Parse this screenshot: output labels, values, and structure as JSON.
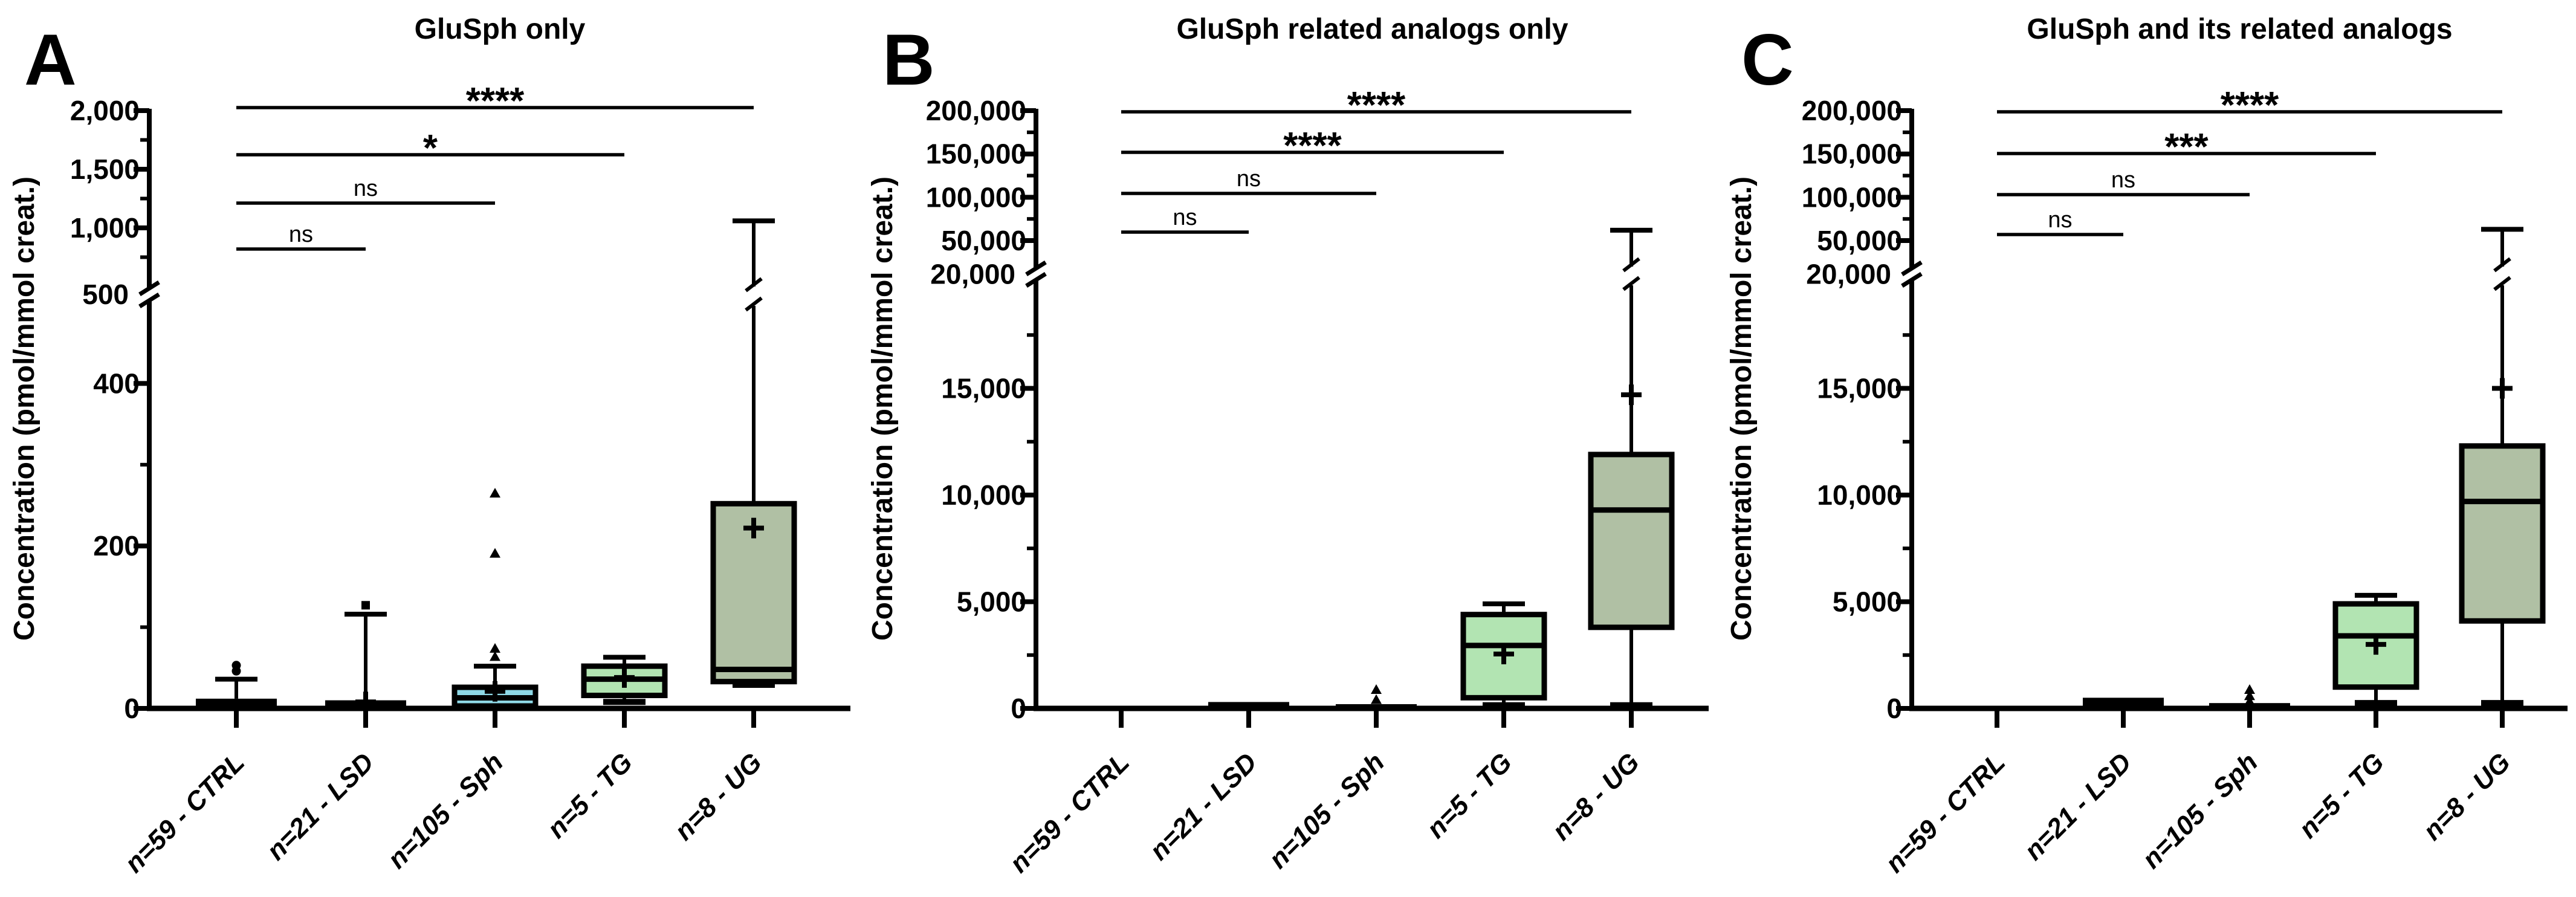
{
  "figure": {
    "background": "#ffffff",
    "axis_color": "#000000",
    "ylabel": "Concentration (pmol/mmol creat.)",
    "categories": [
      "n=59 - CTRL",
      "n=21 - LSD",
      "n=105 - Sph",
      "n=5 - TG",
      "n=8 - UG"
    ]
  },
  "chart_data": [
    {
      "type": "box",
      "panel_label": "A",
      "title": "GluSph only",
      "ylabel": "Concentration (pmol/mmol creat.)",
      "categories": [
        "n=59 - CTRL",
        "n=21 - LSD",
        "n=105 - Sph",
        "n=5 - TG",
        "n=8 - UG"
      ],
      "axis_break": true,
      "lower_range": [
        0,
        500
      ],
      "upper_range": [
        500,
        2000
      ],
      "lower_ticks": [
        {
          "value": 0,
          "label": "0"
        },
        {
          "value": 100
        },
        {
          "value": 200,
          "label": "200"
        },
        {
          "value": 300
        },
        {
          "value": 400,
          "label": "400"
        }
      ],
      "upper_ticks": [
        {
          "value": 500,
          "label": "500",
          "at_break": true
        },
        {
          "value": 750
        },
        {
          "value": 1000,
          "label": "1,000"
        },
        {
          "value": 1250
        },
        {
          "value": 1500,
          "label": "1,500"
        },
        {
          "value": 1750
        },
        {
          "value": 2000,
          "label": "2,000"
        }
      ],
      "boxes": [
        {
          "group": "CTRL",
          "fill": "#000000",
          "q1": 0,
          "q3": 12,
          "median": null,
          "whisker_low": null,
          "whisker_high": 36,
          "mean": null,
          "outliers": [
            {
              "value": 46,
              "shape": "circle"
            },
            {
              "value": 53,
              "shape": "circle"
            }
          ]
        },
        {
          "group": "LSD",
          "fill": "#000000",
          "q1": 0,
          "q3": 10,
          "median": null,
          "whisker_low": null,
          "whisker_high": 116,
          "mean": 8,
          "outliers": [
            {
              "value": 127,
              "shape": "square"
            }
          ]
        },
        {
          "group": "Sph",
          "fill": "#8ed8e6",
          "q1": 3,
          "q3": 26,
          "median": 13,
          "whisker_low": 1,
          "whisker_high": 52,
          "mean": 21,
          "outliers": [
            {
              "value": 63,
              "shape": "triangle"
            },
            {
              "value": 73,
              "shape": "triangle"
            },
            {
              "value": 190,
              "shape": "triangle"
            },
            {
              "value": 264,
              "shape": "triangle"
            }
          ]
        },
        {
          "group": "TG",
          "fill": "#b2e4b2",
          "q1": 16,
          "q3": 52,
          "median": 36,
          "whisker_low": 8,
          "whisker_high": 63,
          "mean": 38,
          "outliers": []
        },
        {
          "group": "UG",
          "fill": "#b0c0a4",
          "q1": 33,
          "q3": 252,
          "median": 48,
          "whisker_low": 29,
          "whisker_high": 1060,
          "mean": 222,
          "outliers": [],
          "whisker_crosses_break": true
        }
      ],
      "significance": [
        {
          "from": 0,
          "to": 1,
          "label": "ns"
        },
        {
          "from": 0,
          "to": 2,
          "label": "ns"
        },
        {
          "from": 0,
          "to": 3,
          "label": "*"
        },
        {
          "from": 0,
          "to": 4,
          "label": "****"
        }
      ]
    },
    {
      "type": "box",
      "panel_label": "B",
      "title": "GluSph related analogs only",
      "ylabel": "Concentration (pmol/mmol creat.)",
      "categories": [
        "n=59 - CTRL",
        "n=21 - LSD",
        "n=105 - Sph",
        "n=5 - TG",
        "n=8 - UG"
      ],
      "axis_break": true,
      "lower_range": [
        0,
        20000
      ],
      "upper_range": [
        20000,
        200000
      ],
      "lower_ticks": [
        {
          "value": 0,
          "label": "0"
        },
        {
          "value": 2500
        },
        {
          "value": 5000,
          "label": "5,000"
        },
        {
          "value": 7500
        },
        {
          "value": 10000,
          "label": "10,000"
        },
        {
          "value": 12500
        },
        {
          "value": 15000,
          "label": "15,000"
        },
        {
          "value": 17500
        }
      ],
      "upper_ticks": [
        {
          "value": 20000,
          "label": "20,000",
          "at_break": true
        },
        {
          "value": 50000,
          "label": "50,000"
        },
        {
          "value": 75000
        },
        {
          "value": 100000,
          "label": "100,000"
        },
        {
          "value": 125000
        },
        {
          "value": 150000,
          "label": "150,000"
        },
        {
          "value": 175000
        },
        {
          "value": 200000,
          "label": "200,000"
        }
      ],
      "boxes": [
        {
          "group": "CTRL",
          "fill": "#000000",
          "q1": 0,
          "q3": 120,
          "median": null,
          "whisker_low": null,
          "whisker_high": null,
          "mean": null,
          "outliers": []
        },
        {
          "group": "LSD",
          "fill": "#000000",
          "q1": 0,
          "q3": 300,
          "median": null,
          "whisker_low": null,
          "whisker_high": null,
          "mean": null,
          "outliers": []
        },
        {
          "group": "Sph",
          "fill": "#000000",
          "q1": 0,
          "q3": 200,
          "median": null,
          "whisker_low": null,
          "whisker_high": null,
          "mean": null,
          "outliers": [
            {
              "value": 380,
              "shape": "triangle"
            },
            {
              "value": 850,
              "shape": "triangle"
            }
          ]
        },
        {
          "group": "TG",
          "fill": "#b2e4b2",
          "q1": 500,
          "q3": 4400,
          "median": 2950,
          "whisker_low": 150,
          "whisker_high": 4900,
          "mean": 2550,
          "outliers": []
        },
        {
          "group": "UG",
          "fill": "#b0c0a4",
          "q1": 3800,
          "q3": 11900,
          "median": 9300,
          "whisker_low": 150,
          "whisker_high": 62000,
          "mean": 14700,
          "outliers": [],
          "whisker_crosses_break": true,
          "mean_on_whisker": true
        }
      ],
      "significance": [
        {
          "from": 0,
          "to": 1,
          "label": "ns"
        },
        {
          "from": 0,
          "to": 2,
          "label": "ns"
        },
        {
          "from": 0,
          "to": 3,
          "label": "****"
        },
        {
          "from": 0,
          "to": 4,
          "label": "****"
        }
      ]
    },
    {
      "type": "box",
      "panel_label": "C",
      "title": "GluSph and its related analogs",
      "ylabel": "Concentration (pmol/mmol creat.)",
      "categories": [
        "n=59 - CTRL",
        "n=21 - LSD",
        "n=105 - Sph",
        "n=5 - TG",
        "n=8 - UG"
      ],
      "axis_break": true,
      "lower_range": [
        0,
        20000
      ],
      "upper_range": [
        20000,
        200000
      ],
      "lower_ticks": [
        {
          "value": 0,
          "label": "0"
        },
        {
          "value": 2500
        },
        {
          "value": 5000,
          "label": "5,000"
        },
        {
          "value": 7500
        },
        {
          "value": 10000,
          "label": "10,000"
        },
        {
          "value": 12500
        },
        {
          "value": 15000,
          "label": "15,000"
        },
        {
          "value": 17500
        }
      ],
      "upper_ticks": [
        {
          "value": 20000,
          "label": "20,000",
          "at_break": true
        },
        {
          "value": 50000,
          "label": "50,000"
        },
        {
          "value": 75000
        },
        {
          "value": 100000,
          "label": "100,000"
        },
        {
          "value": 125000
        },
        {
          "value": 150000,
          "label": "150,000"
        },
        {
          "value": 175000
        },
        {
          "value": 200000,
          "label": "200,000"
        }
      ],
      "boxes": [
        {
          "group": "CTRL",
          "fill": "#000000",
          "q1": 0,
          "q3": 120,
          "median": null,
          "whisker_low": null,
          "whisker_high": null,
          "mean": null,
          "outliers": []
        },
        {
          "group": "LSD",
          "fill": "#000000",
          "q1": 0,
          "q3": 500,
          "median": null,
          "whisker_low": null,
          "whisker_high": null,
          "mean": null,
          "outliers": []
        },
        {
          "group": "Sph",
          "fill": "#000000",
          "q1": 0,
          "q3": 250,
          "median": null,
          "whisker_low": null,
          "whisker_high": null,
          "mean": null,
          "outliers": [
            {
              "value": 300,
              "shape": "triangle"
            },
            {
              "value": 560,
              "shape": "triangle"
            },
            {
              "value": 850,
              "shape": "triangle"
            }
          ]
        },
        {
          "group": "TG",
          "fill": "#b2e4b2",
          "q1": 1000,
          "q3": 4900,
          "median": 3400,
          "whisker_low": 250,
          "whisker_high": 5300,
          "mean": 3000,
          "outliers": []
        },
        {
          "group": "UG",
          "fill": "#b0c0a4",
          "q1": 4100,
          "q3": 12300,
          "median": 9700,
          "whisker_low": 250,
          "whisker_high": 63000,
          "mean": 15000,
          "outliers": [],
          "whisker_crosses_break": true,
          "mean_on_whisker": true
        }
      ],
      "significance": [
        {
          "from": 0,
          "to": 1,
          "label": "ns"
        },
        {
          "from": 0,
          "to": 2,
          "label": "ns"
        },
        {
          "from": 0,
          "to": 3,
          "label": "***"
        },
        {
          "from": 0,
          "to": 4,
          "label": "****"
        }
      ]
    }
  ]
}
